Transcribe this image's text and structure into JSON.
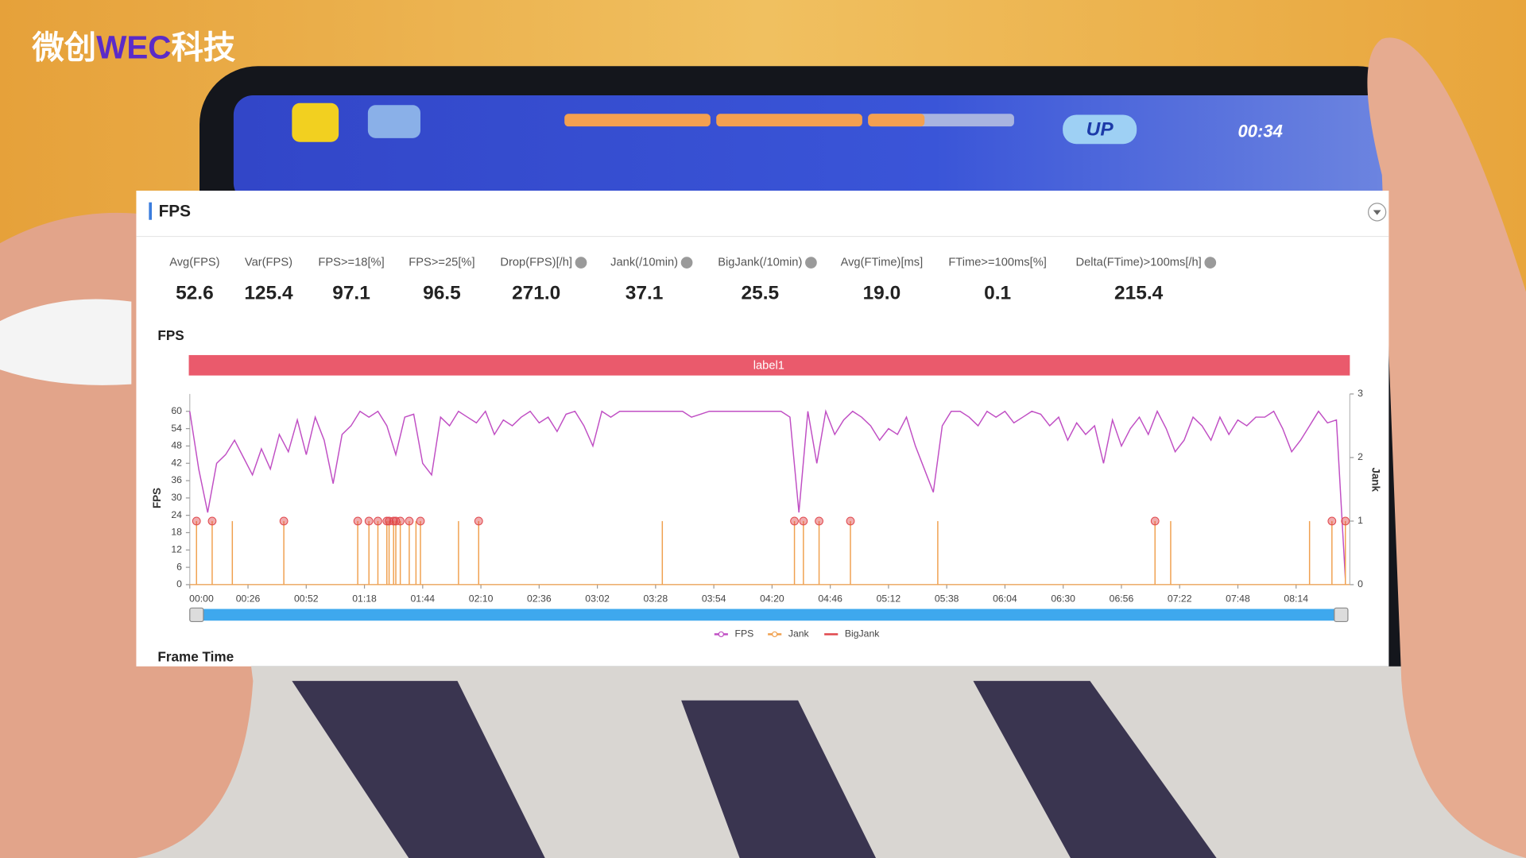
{
  "watermark": {
    "prefix": "微创",
    "brand": "WEC",
    "suffix": "科技"
  },
  "game_hud": {
    "button": "UP",
    "timer": "00:34"
  },
  "panel": {
    "title": "FPS",
    "metrics": [
      {
        "label": "Avg(FPS)",
        "value": "52.6"
      },
      {
        "label": "Var(FPS)",
        "value": "125.4"
      },
      {
        "label": "FPS>=18[%]",
        "value": "97.1"
      },
      {
        "label": "FPS>=25[%]",
        "value": "96.5"
      },
      {
        "label": "Drop(FPS)[/h]",
        "value": "271.0"
      },
      {
        "label": "Jank(/10min)",
        "value": "37.1"
      },
      {
        "label": "BigJank(/10min)",
        "value": "25.5"
      },
      {
        "label": "Avg(FTime)[ms]",
        "value": "19.0"
      },
      {
        "label": "FTime>=100ms[%]",
        "value": "0.1"
      },
      {
        "label": "Delta(FTime)>100ms[/h]",
        "value": "215.4"
      }
    ],
    "next_section": "Frame Time"
  },
  "chart_data": {
    "type": "line",
    "title": "FPS",
    "band_label": "label1",
    "ylabel": "FPS",
    "y2label": "Jank",
    "x": [
      0,
      4,
      8,
      12,
      16,
      20,
      24,
      28,
      32,
      36,
      40,
      44,
      48,
      52,
      56,
      60,
      64,
      68,
      72,
      76,
      80,
      84,
      88,
      92,
      96,
      100,
      104,
      108,
      112,
      116,
      120,
      124,
      128,
      132,
      136,
      140,
      144,
      148,
      152,
      156,
      160,
      164,
      168,
      172,
      176,
      180,
      184,
      188,
      192,
      196,
      200,
      204,
      208,
      212,
      216,
      220,
      224,
      228,
      232,
      236,
      240,
      244,
      248,
      252,
      256,
      260,
      264,
      268,
      272,
      276,
      280,
      284,
      288,
      292,
      296,
      300,
      304,
      308,
      312,
      316,
      320,
      324,
      328,
      332,
      336,
      340,
      344,
      348,
      352,
      356,
      360,
      364,
      368,
      372,
      376,
      380,
      384,
      388,
      392,
      396,
      400,
      404,
      408,
      412,
      416,
      420,
      424,
      428,
      432,
      436,
      440,
      444,
      448,
      452,
      456,
      460,
      464,
      468,
      472,
      476,
      480,
      484,
      488,
      492,
      496,
      500,
      504,
      508,
      512,
      516
    ],
    "xlim": [
      0,
      518
    ],
    "xticks": [
      {
        "value": 0,
        "label": "00:00"
      },
      {
        "value": 26,
        "label": "00:26"
      },
      {
        "value": 52,
        "label": "00:52"
      },
      {
        "value": 78,
        "label": "01:18"
      },
      {
        "value": 104,
        "label": "01:44"
      },
      {
        "value": 130,
        "label": "02:10"
      },
      {
        "value": 156,
        "label": "02:36"
      },
      {
        "value": 182,
        "label": "03:02"
      },
      {
        "value": 208,
        "label": "03:28"
      },
      {
        "value": 234,
        "label": "03:54"
      },
      {
        "value": 260,
        "label": "04:20"
      },
      {
        "value": 286,
        "label": "04:46"
      },
      {
        "value": 312,
        "label": "05:12"
      },
      {
        "value": 338,
        "label": "05:38"
      },
      {
        "value": 364,
        "label": "06:04"
      },
      {
        "value": 390,
        "label": "06:30"
      },
      {
        "value": 416,
        "label": "06:56"
      },
      {
        "value": 442,
        "label": "07:22"
      },
      {
        "value": 468,
        "label": "07:48"
      },
      {
        "value": 494,
        "label": "08:14"
      }
    ],
    "ylim": [
      0,
      66
    ],
    "yticks": [
      0,
      6,
      12,
      18,
      24,
      30,
      36,
      42,
      48,
      54,
      60
    ],
    "y2lim": [
      0,
      3
    ],
    "y2ticks": [
      0,
      1,
      2,
      3
    ],
    "legend": "bottom",
    "series": [
      {
        "name": "FPS",
        "color": "#c04fc4",
        "values": [
          60,
          40,
          25,
          42,
          45,
          50,
          44,
          38,
          47,
          40,
          52,
          46,
          57,
          45,
          58,
          50,
          35,
          52,
          55,
          60,
          58,
          60,
          55,
          45,
          58,
          59,
          42,
          38,
          58,
          55,
          60,
          58,
          56,
          60,
          52,
          57,
          55,
          58,
          60,
          56,
          58,
          53,
          59,
          60,
          55,
          48,
          60,
          58,
          60,
          60,
          60,
          60,
          60,
          60,
          60,
          60,
          58,
          59,
          60,
          60,
          60,
          60,
          60,
          60,
          60,
          60,
          60,
          58,
          25,
          60,
          42,
          60,
          52,
          57,
          60,
          58,
          55,
          50,
          54,
          52,
          58,
          48,
          40,
          32,
          55,
          60,
          60,
          58,
          55,
          60,
          58,
          60,
          56,
          58,
          60,
          59,
          55,
          58,
          50,
          56,
          52,
          55,
          42,
          57,
          48,
          54,
          58,
          52,
          60,
          54,
          46,
          50,
          58,
          55,
          50,
          58,
          52,
          57,
          55,
          58,
          58,
          60,
          54,
          46,
          50,
          55,
          60,
          56,
          57,
          2
        ]
      },
      {
        "name": "Jank",
        "color": "#f0a04e",
        "axis": "y2",
        "x": [
          3,
          10,
          19,
          42,
          75,
          80,
          84,
          88,
          89,
          91,
          92,
          94,
          98,
          101,
          103,
          120,
          129,
          211,
          270,
          274,
          281,
          295,
          334,
          431,
          438,
          500,
          510,
          516
        ],
        "values": [
          1,
          1,
          1,
          1,
          1,
          1,
          1,
          1,
          1,
          1,
          1,
          1,
          1,
          1,
          1,
          1,
          1,
          1,
          1,
          1,
          1,
          1,
          1,
          1,
          1,
          1,
          1,
          1
        ]
      },
      {
        "name": "BigJank",
        "color": "#e0474c",
        "axis": "y2",
        "x": [
          3,
          10,
          42,
          75,
          80,
          84,
          88,
          89,
          91,
          92,
          94,
          98,
          103,
          129,
          270,
          274,
          281,
          295,
          431,
          510,
          516
        ],
        "values": [
          1,
          1,
          1,
          1,
          1,
          1,
          1,
          1,
          1,
          1,
          1,
          1,
          1,
          1,
          1,
          1,
          1,
          1,
          1,
          1,
          1
        ]
      }
    ]
  }
}
